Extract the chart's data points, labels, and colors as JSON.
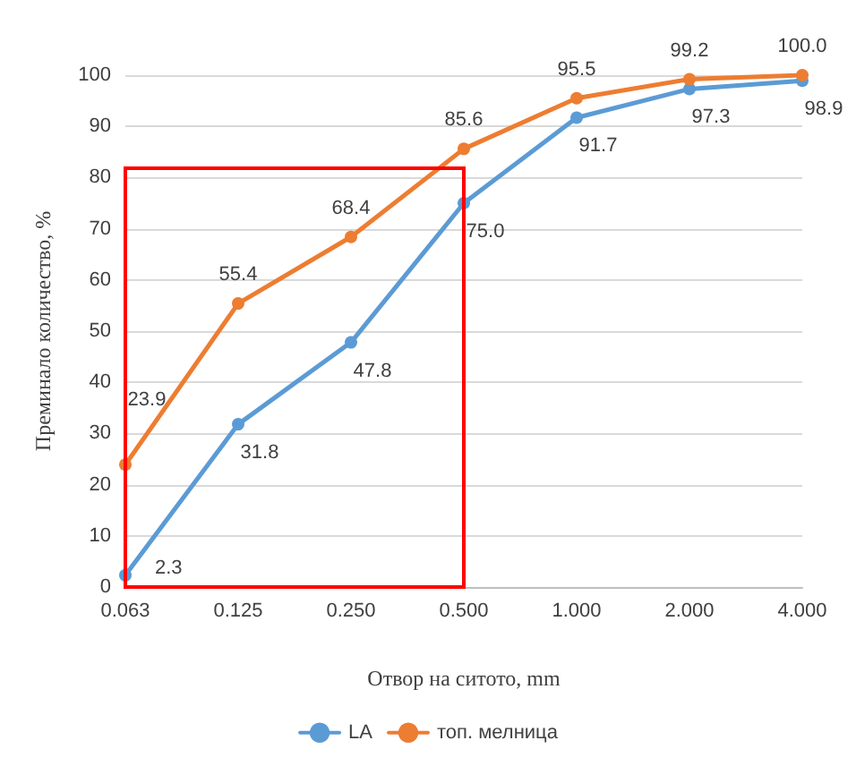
{
  "chart_data": {
    "type": "line",
    "xlabel": "Отвор на ситото, mm",
    "ylabel": "Преминало количество, %",
    "categories": [
      "0.063",
      "0.125",
      "0.250",
      "0.500",
      "1.000",
      "2.000",
      "4.000"
    ],
    "series": [
      {
        "name": "LA",
        "color": "#5b9bd5",
        "values": [
          2.3,
          31.8,
          47.8,
          75.0,
          91.7,
          97.3,
          98.9
        ],
        "value_labels": [
          "2.3",
          "31.8",
          "47.8",
          "75.0",
          "91.7",
          "97.3",
          "98.9"
        ]
      },
      {
        "name": "топ. мелница",
        "color": "#ed7d31",
        "values": [
          23.9,
          55.4,
          68.4,
          85.6,
          95.5,
          99.2,
          100.0
        ],
        "value_labels": [
          "23.9",
          "55.4",
          "68.4",
          "85.6",
          "95.5",
          "99.2",
          "100.0"
        ]
      }
    ],
    "ylim": [
      0,
      100
    ],
    "yticks": [
      0,
      10,
      20,
      30,
      40,
      50,
      60,
      70,
      80,
      90,
      100
    ],
    "grid": "y",
    "legend": "bottom",
    "marker": "circle",
    "line_style": "solid"
  }
}
